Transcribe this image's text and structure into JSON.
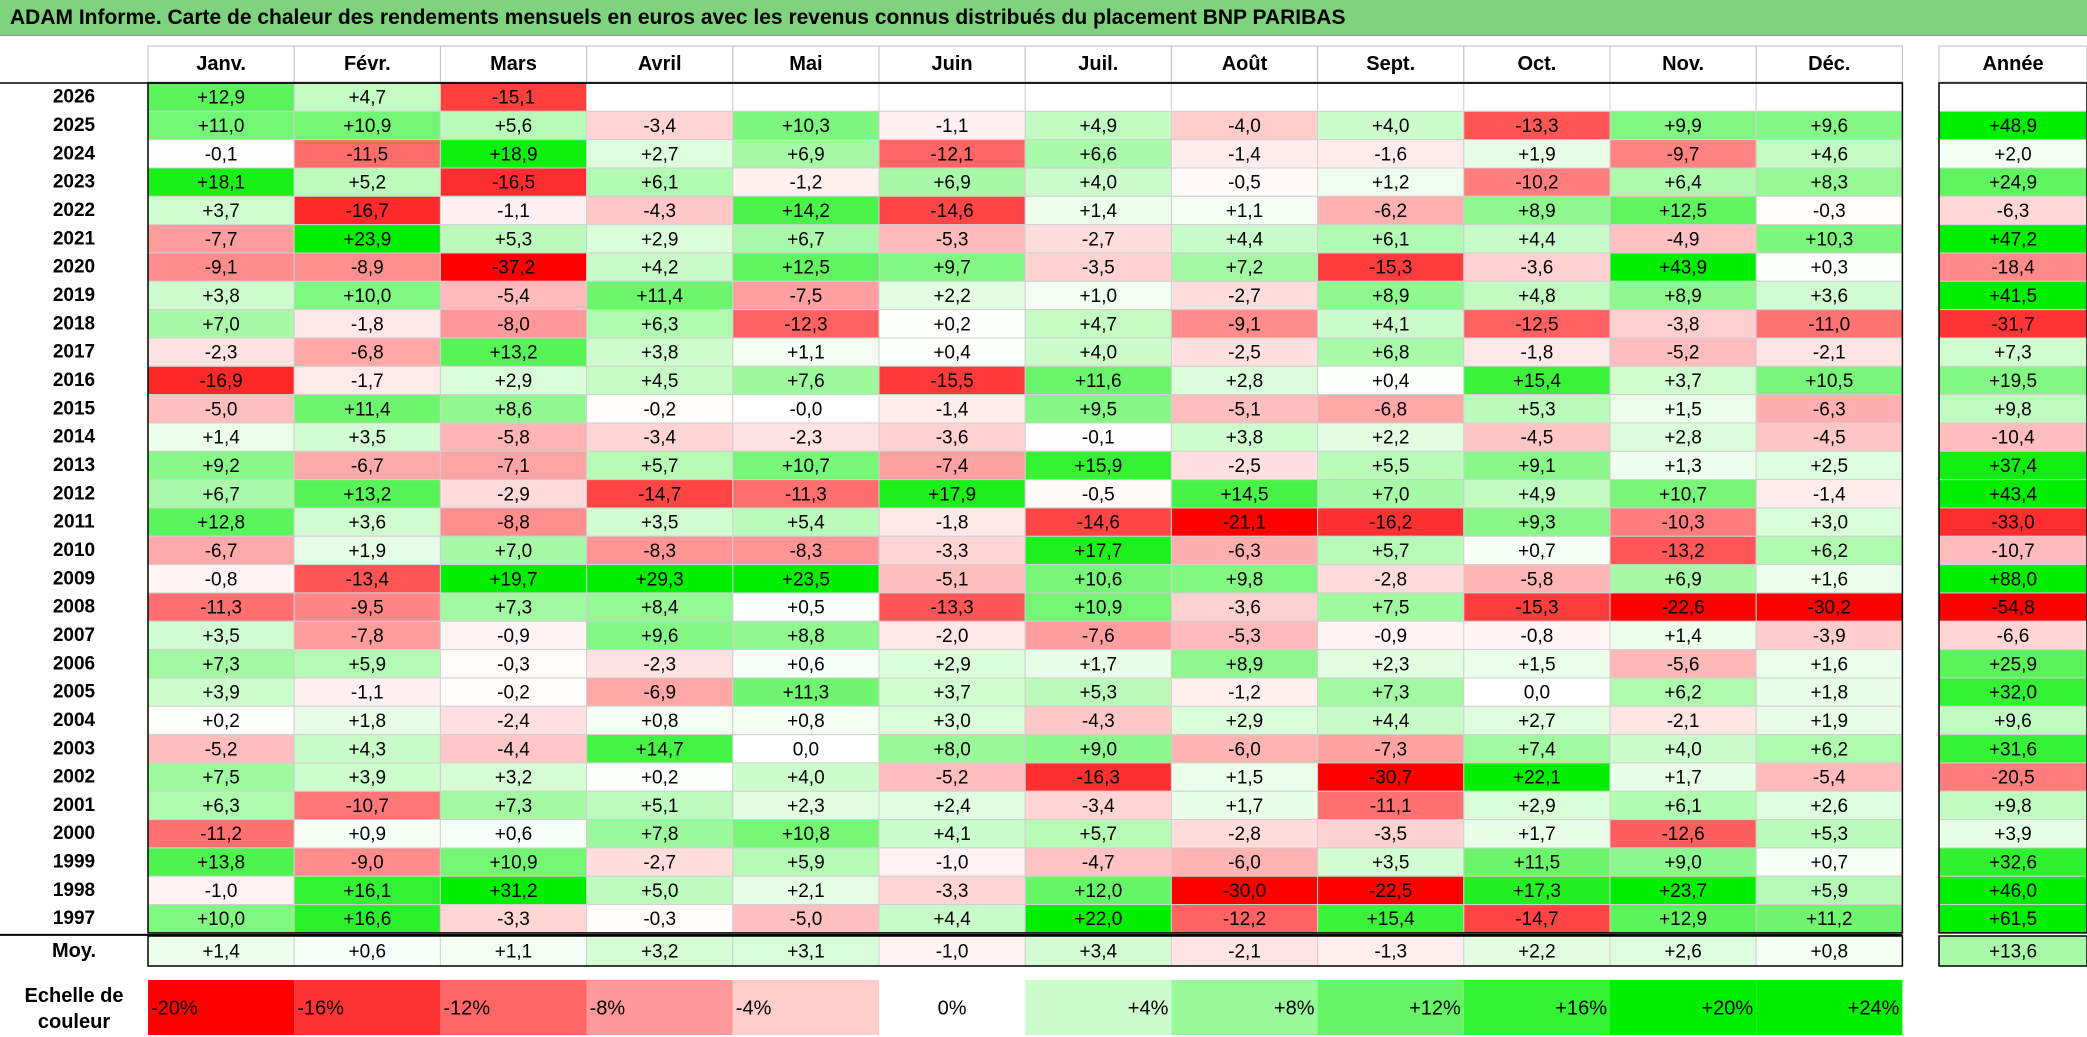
{
  "title": "ADAM Informe. Carte de chaleur des rendements mensuels en euros avec les revenus connus distribués du placement BNP PARIBAS",
  "chart_data": {
    "type": "heatmap",
    "columns": [
      "Janv.",
      "Févr.",
      "Mars",
      "Avril",
      "Mai",
      "Juin",
      "Juil.",
      "Août",
      "Sept.",
      "Oct.",
      "Nov.",
      "Déc."
    ],
    "year_header": "Année",
    "rows": [
      {
        "year": "2026",
        "values": [
          "+12,9",
          "+4,7",
          "-15,1",
          "",
          "",
          "",
          "",
          "",
          "",
          "",
          "",
          ""
        ],
        "annual": ""
      },
      {
        "year": "2025",
        "values": [
          "+11,0",
          "+10,9",
          "+5,6",
          "-3,4",
          "+10,3",
          "-1,1",
          "+4,9",
          "-4,0",
          "+4,0",
          "-13,3",
          "+9,9",
          "+9,6"
        ],
        "annual": "+48,9"
      },
      {
        "year": "2024",
        "values": [
          "-0,1",
          "-11,5",
          "+18,9",
          "+2,7",
          "+6,9",
          "-12,1",
          "+6,6",
          "-1,4",
          "-1,6",
          "+1,9",
          "-9,7",
          "+4,6"
        ],
        "annual": "+2,0"
      },
      {
        "year": "2023",
        "values": [
          "+18,1",
          "+5,2",
          "-16,5",
          "+6,1",
          "-1,2",
          "+6,9",
          "+4,0",
          "-0,5",
          "+1,2",
          "-10,2",
          "+6,4",
          "+8,3"
        ],
        "annual": "+24,9"
      },
      {
        "year": "2022",
        "values": [
          "+3,7",
          "-16,7",
          "-1,1",
          "-4,3",
          "+14,2",
          "-14,6",
          "+1,4",
          "+1,1",
          "-6,2",
          "+8,9",
          "+12,5",
          "-0,3"
        ],
        "annual": "-6,3"
      },
      {
        "year": "2021",
        "values": [
          "-7,7",
          "+23,9",
          "+5,3",
          "+2,9",
          "+6,7",
          "-5,3",
          "-2,7",
          "+4,4",
          "+6,1",
          "+4,4",
          "-4,9",
          "+10,3"
        ],
        "annual": "+47,2"
      },
      {
        "year": "2020",
        "values": [
          "-9,1",
          "-8,9",
          "-37,2",
          "+4,2",
          "+12,5",
          "+9,7",
          "-3,5",
          "+7,2",
          "-15,3",
          "-3,6",
          "+43,9",
          "+0,3"
        ],
        "annual": "-18,4"
      },
      {
        "year": "2019",
        "values": [
          "+3,8",
          "+10,0",
          "-5,4",
          "+11,4",
          "-7,5",
          "+2,2",
          "+1,0",
          "-2,7",
          "+8,9",
          "+4,8",
          "+8,9",
          "+3,6"
        ],
        "annual": "+41,5"
      },
      {
        "year": "2018",
        "values": [
          "+7,0",
          "-1,8",
          "-8,0",
          "+6,3",
          "-12,3",
          "+0,2",
          "+4,7",
          "-9,1",
          "+4,1",
          "-12,5",
          "-3,8",
          "-11,0"
        ],
        "annual": "-31,7"
      },
      {
        "year": "2017",
        "values": [
          "-2,3",
          "-6,8",
          "+13,2",
          "+3,8",
          "+1,1",
          "+0,4",
          "+4,0",
          "-2,5",
          "+6,8",
          "-1,8",
          "-5,2",
          "-2,1"
        ],
        "annual": "+7,3"
      },
      {
        "year": "2016",
        "values": [
          "-16,9",
          "-1,7",
          "+2,9",
          "+4,5",
          "+7,6",
          "-15,5",
          "+11,6",
          "+2,8",
          "+0,4",
          "+15,4",
          "+3,7",
          "+10,5"
        ],
        "annual": "+19,5"
      },
      {
        "year": "2015",
        "values": [
          "-5,0",
          "+11,4",
          "+8,6",
          "-0,2",
          "-0,0",
          "-1,4",
          "+9,5",
          "-5,1",
          "-6,8",
          "+5,3",
          "+1,5",
          "-6,3"
        ],
        "annual": "+9,8"
      },
      {
        "year": "2014",
        "values": [
          "+1,4",
          "+3,5",
          "-5,8",
          "-3,4",
          "-2,3",
          "-3,6",
          "-0,1",
          "+3,8",
          "+2,2",
          "-4,5",
          "+2,8",
          "-4,5"
        ],
        "annual": "-10,4"
      },
      {
        "year": "2013",
        "values": [
          "+9,2",
          "-6,7",
          "-7,1",
          "+5,7",
          "+10,7",
          "-7,4",
          "+15,9",
          "-2,5",
          "+5,5",
          "+9,1",
          "+1,3",
          "+2,5"
        ],
        "annual": "+37,4"
      },
      {
        "year": "2012",
        "values": [
          "+6,7",
          "+13,2",
          "-2,9",
          "-14,7",
          "-11,3",
          "+17,9",
          "-0,5",
          "+14,5",
          "+7,0",
          "+4,9",
          "+10,7",
          "-1,4"
        ],
        "annual": "+43,4"
      },
      {
        "year": "2011",
        "values": [
          "+12,8",
          "+3,6",
          "-8,8",
          "+3,5",
          "+5,4",
          "-1,8",
          "-14,6",
          "-21,1",
          "-16,2",
          "+9,3",
          "-10,3",
          "+3,0"
        ],
        "annual": "-33,0"
      },
      {
        "year": "2010",
        "values": [
          "-6,7",
          "+1,9",
          "+7,0",
          "-8,3",
          "-8,3",
          "-3,3",
          "+17,7",
          "-6,3",
          "+5,7",
          "+0,7",
          "-13,2",
          "+6,2"
        ],
        "annual": "-10,7"
      },
      {
        "year": "2009",
        "values": [
          "-0,8",
          "-13,4",
          "+19,7",
          "+29,3",
          "+23,5",
          "-5,1",
          "+10,6",
          "+9,8",
          "-2,8",
          "-5,8",
          "+6,9",
          "+1,6"
        ],
        "annual": "+88,0"
      },
      {
        "year": "2008",
        "values": [
          "-11,3",
          "-9,5",
          "+7,3",
          "+8,4",
          "+0,5",
          "-13,3",
          "+10,9",
          "-3,6",
          "+7,5",
          "-15,3",
          "-22,6",
          "-30,2"
        ],
        "annual": "-54,8"
      },
      {
        "year": "2007",
        "values": [
          "+3,5",
          "-7,8",
          "-0,9",
          "+9,6",
          "+8,8",
          "-2,0",
          "-7,6",
          "-5,3",
          "-0,9",
          "-0,8",
          "+1,4",
          "-3,9"
        ],
        "annual": "-6,6"
      },
      {
        "year": "2006",
        "values": [
          "+7,3",
          "+5,9",
          "-0,3",
          "-2,3",
          "+0,6",
          "+2,9",
          "+1,7",
          "+8,9",
          "+2,3",
          "+1,5",
          "-5,6",
          "+1,6"
        ],
        "annual": "+25,9"
      },
      {
        "year": "2005",
        "values": [
          "+3,9",
          "-1,1",
          "-0,2",
          "-6,9",
          "+11,3",
          "+3,7",
          "+5,3",
          "-1,2",
          "+7,3",
          "0,0",
          "+6,2",
          "+1,8"
        ],
        "annual": "+32,0"
      },
      {
        "year": "2004",
        "values": [
          "+0,2",
          "+1,8",
          "-2,4",
          "+0,8",
          "+0,8",
          "+3,0",
          "-4,3",
          "+2,9",
          "+4,4",
          "+2,7",
          "-2,1",
          "+1,9"
        ],
        "annual": "+9,6"
      },
      {
        "year": "2003",
        "values": [
          "-5,2",
          "+4,3",
          "-4,4",
          "+14,7",
          "0,0",
          "+8,0",
          "+9,0",
          "-6,0",
          "-7,3",
          "+7,4",
          "+4,0",
          "+6,2"
        ],
        "annual": "+31,6"
      },
      {
        "year": "2002",
        "values": [
          "+7,5",
          "+3,9",
          "+3,2",
          "+0,2",
          "+4,0",
          "-5,2",
          "-16,3",
          "+1,5",
          "-30,7",
          "+22,1",
          "+1,7",
          "-5,4"
        ],
        "annual": "-20,5"
      },
      {
        "year": "2001",
        "values": [
          "+6,3",
          "-10,7",
          "+7,3",
          "+5,1",
          "+2,3",
          "+2,4",
          "-3,4",
          "+1,7",
          "-11,1",
          "+2,9",
          "+6,1",
          "+2,6"
        ],
        "annual": "+9,8"
      },
      {
        "year": "2000",
        "values": [
          "-11,2",
          "+0,9",
          "+0,6",
          "+7,8",
          "+10,8",
          "+4,1",
          "+5,7",
          "-2,8",
          "-3,5",
          "+1,7",
          "-12,6",
          "+5,3"
        ],
        "annual": "+3,9"
      },
      {
        "year": "1999",
        "values": [
          "+13,8",
          "-9,0",
          "+10,9",
          "-2,7",
          "+5,9",
          "-1,0",
          "-4,7",
          "-6,0",
          "+3,5",
          "+11,5",
          "+9,0",
          "+0,7"
        ],
        "annual": "+32,6"
      },
      {
        "year": "1998",
        "values": [
          "-1,0",
          "+16,1",
          "+31,2",
          "+5,0",
          "+2,1",
          "-3,3",
          "+12,0",
          "-30,0",
          "-22,5",
          "+17,3",
          "+23,7",
          "+5,9"
        ],
        "annual": "+46,0"
      },
      {
        "year": "1997",
        "values": [
          "+10,0",
          "+16,6",
          "-3,3",
          "-0,3",
          "-5,0",
          "+4,4",
          "+22,0",
          "-12,2",
          "+15,4",
          "-14,7",
          "+12,9",
          "+11,2"
        ],
        "annual": "+61,5"
      }
    ],
    "average": {
      "label": "Moy.",
      "values": [
        "+1,4",
        "+0,6",
        "+1,1",
        "+3,2",
        "+3,1",
        "-1,0",
        "+3,4",
        "-2,1",
        "-1,3",
        "+2,2",
        "+2,6",
        "+0,8"
      ],
      "annual": "+13,6"
    },
    "scale": {
      "label_line1": "Echelle de",
      "label_line2": "couleur",
      "items": [
        {
          "label": "-20%",
          "value": -20
        },
        {
          "label": "-16%",
          "value": -16
        },
        {
          "label": "-12%",
          "value": -12
        },
        {
          "label": "-8%",
          "value": -8
        },
        {
          "label": "-4%",
          "value": -4
        },
        {
          "label": "0%",
          "value": 0
        },
        {
          "label": "+4%",
          "value": 4
        },
        {
          "label": "+8%",
          "value": 8
        },
        {
          "label": "+12%",
          "value": 12
        },
        {
          "label": "+16%",
          "value": 16
        },
        {
          "label": "+20%",
          "value": 20
        },
        {
          "label": "+24%",
          "value": 24
        }
      ]
    },
    "colors": {
      "negative_max": "#ff0000",
      "neutral": "#ffffff",
      "positive_max": "#00ee00"
    }
  }
}
